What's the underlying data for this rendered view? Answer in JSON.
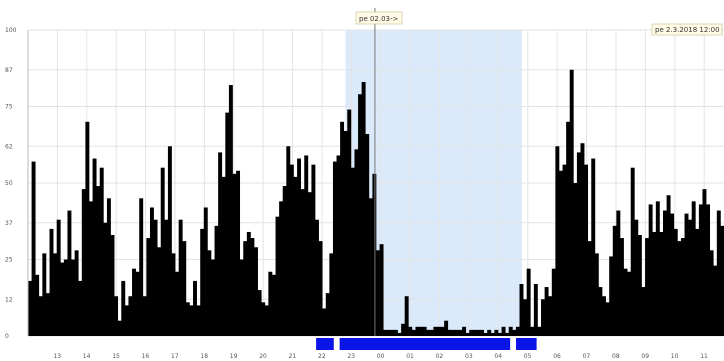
{
  "chart_data": {
    "type": "bar",
    "title": "",
    "xlabel": "",
    "ylabel": "",
    "ylim": [
      0,
      100
    ],
    "yticks": [
      0,
      12,
      25,
      37,
      50,
      62,
      75,
      87,
      100
    ],
    "x_hour_labels": [
      "13",
      "14",
      "15",
      "16",
      "17",
      "18",
      "19",
      "20",
      "21",
      "22",
      "23",
      "00",
      "01",
      "02",
      "03",
      "04",
      "05",
      "06",
      "07",
      "08",
      "09",
      "10",
      "11"
    ],
    "start_hour_label": "12",
    "shaded_range": {
      "from_hour": "22:48",
      "to_hour": "04:48"
    },
    "cursor_label": "pe 02.03->",
    "cursor_hour": "23:48",
    "date_label": "pe 2.3.2018 12:00",
    "colors": {
      "bars": "#000000",
      "shade": "#dbeafb",
      "strip": "#0a14e8",
      "cursor": "#777777",
      "grid": "#e3e3e3",
      "tag_bg": "#fffbe6",
      "tag_border": "#c9b98c"
    },
    "strip_segments": [
      {
        "from": "21:48",
        "to": "22:24"
      },
      {
        "from": "22:36",
        "to": "04:24"
      },
      {
        "from": "04:36",
        "to": "05:18"
      }
    ],
    "series": [
      {
        "values": [
          18,
          57,
          20,
          13,
          27,
          14,
          35,
          27,
          38,
          24,
          25,
          41,
          25,
          28,
          18,
          48,
          70,
          44,
          58,
          49,
          55,
          37,
          45,
          33,
          13,
          5,
          18,
          10,
          13,
          22,
          21,
          45,
          13,
          32,
          42,
          38,
          29,
          55,
          38,
          62,
          27,
          21,
          38,
          31,
          11,
          10,
          18,
          10,
          35,
          42,
          28,
          25,
          36,
          60,
          52,
          73,
          82,
          53,
          54,
          25,
          31,
          34,
          32,
          29,
          15,
          11,
          10,
          21,
          20,
          39,
          44,
          49,
          62,
          56,
          52,
          58,
          48,
          59,
          47,
          56,
          38,
          31,
          9,
          14,
          27,
          57,
          59,
          70,
          67,
          74,
          55,
          61,
          79,
          83,
          66,
          45,
          53,
          28,
          30,
          2,
          2,
          2,
          2,
          1,
          4,
          13,
          3,
          2,
          3,
          3,
          3,
          2,
          2,
          3,
          3,
          3,
          5,
          2,
          2,
          2,
          2,
          3,
          1,
          2,
          2,
          2,
          2,
          1,
          2,
          1,
          2,
          1,
          3,
          1,
          3,
          2,
          3,
          17,
          12,
          22,
          3,
          17,
          3,
          12,
          16,
          13,
          22,
          62,
          54,
          56,
          70,
          87,
          50,
          60,
          63,
          56,
          31,
          58,
          27,
          16,
          13,
          11,
          26,
          36,
          41,
          32,
          22,
          21,
          55,
          38,
          33,
          16,
          32,
          43,
          34,
          44,
          34,
          41,
          46,
          40,
          35,
          31,
          32,
          40,
          38,
          44,
          35,
          43,
          48,
          43,
          28,
          23,
          41,
          36
        ]
      }
    ]
  }
}
